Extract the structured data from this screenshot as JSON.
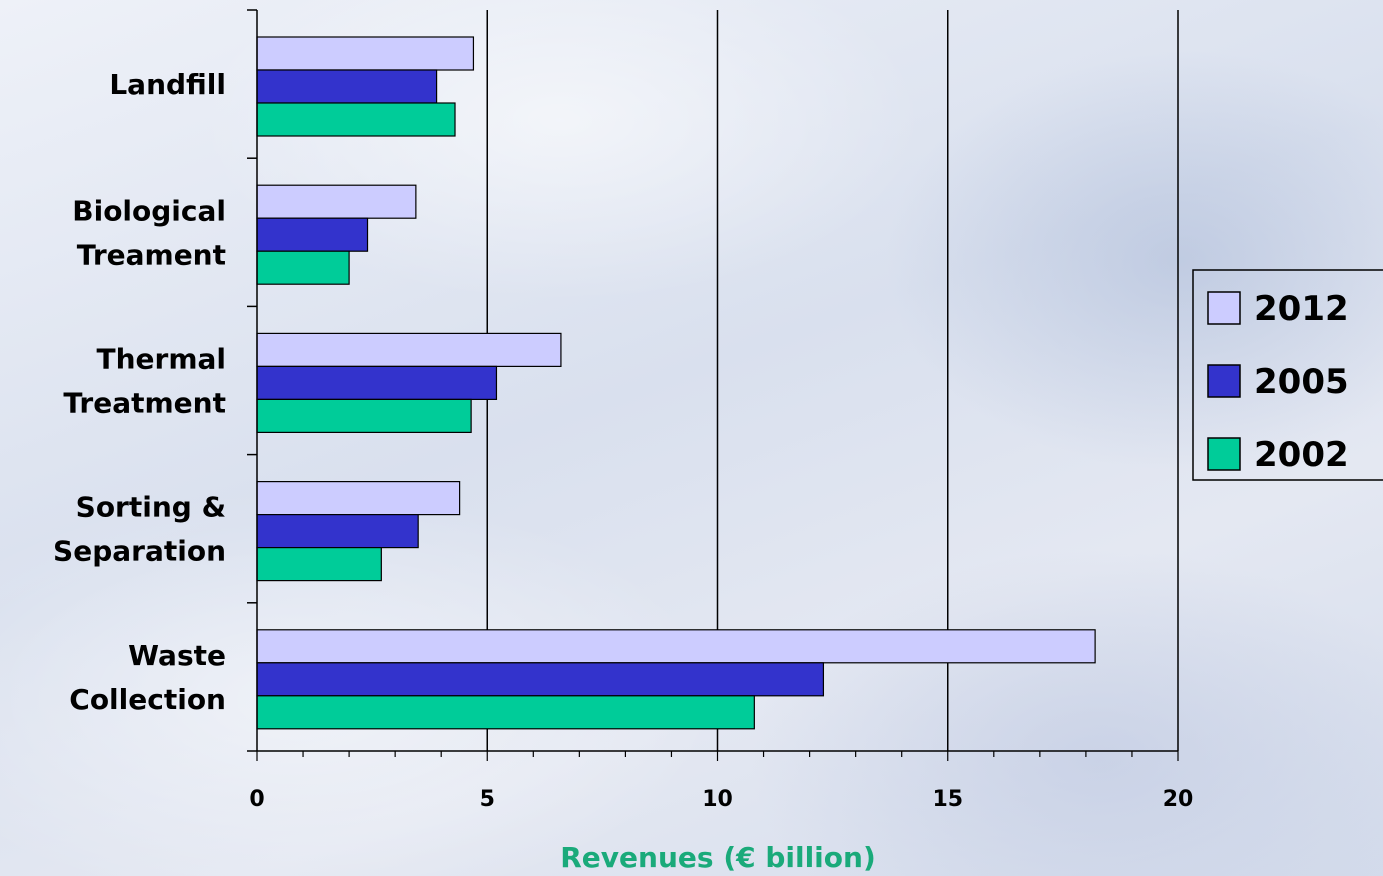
{
  "chart_data": {
    "type": "bar",
    "orientation": "horizontal",
    "categories": [
      "Landfill",
      "Biological Treament",
      "Thermal Treatment",
      "Sorting & Separation",
      "Waste Collection"
    ],
    "category_label_lines": [
      [
        "Landfill"
      ],
      [
        "Biological",
        "Treament"
      ],
      [
        "Thermal",
        "Treatment"
      ],
      [
        "Sorting &",
        "Separation"
      ],
      [
        "Waste",
        "Collection"
      ]
    ],
    "series": [
      {
        "name": "2012",
        "color": "#ccccff",
        "values": [
          4.7,
          3.45,
          6.6,
          4.4,
          18.2
        ]
      },
      {
        "name": "2005",
        "color": "#3333cc",
        "values": [
          3.9,
          2.4,
          5.2,
          3.5,
          12.3
        ]
      },
      {
        "name": "2002",
        "color": "#00cc99",
        "values": [
          4.3,
          2.0,
          4.65,
          2.7,
          10.8
        ]
      }
    ],
    "xlabel": "Revenues (€ billion)",
    "xlabel_color": "#1aaa7a",
    "xlim": [
      0,
      20
    ],
    "xticks": [
      0,
      5,
      10,
      15,
      20
    ],
    "grid": true,
    "legend_position": "right"
  }
}
